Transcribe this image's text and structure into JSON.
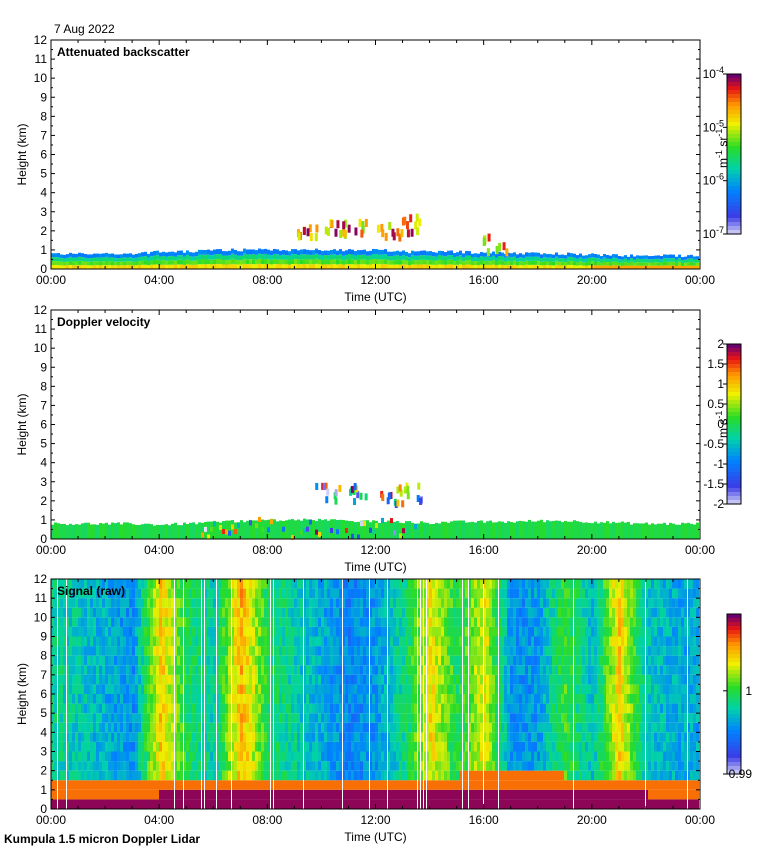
{
  "date": "7 Aug 2022",
  "instrument": "Kumpula 1.5 micron Doppler Lidar",
  "chart_data": [
    {
      "type": "heatmap",
      "title": "Attenuated backscatter",
      "xlabel": "Time (UTC)",
      "ylabel": "Height (km)",
      "xlim": [
        0,
        24
      ],
      "ylim": [
        0,
        12
      ],
      "x_tick_labels": [
        "00:00",
        "04:00",
        "08:00",
        "12:00",
        "16:00",
        "20:00",
        "00:00"
      ],
      "y_tick_labels": [
        "0",
        "1",
        "2",
        "3",
        "4",
        "5",
        "6",
        "7",
        "8",
        "9",
        "10",
        "11",
        "12"
      ],
      "colorbar": {
        "label_parts": [
          "m",
          "-1",
          " sr",
          "-1"
        ],
        "scale": "log",
        "tick_labels": [
          {
            "base": "10",
            "exp": "-7"
          },
          {
            "base": "10",
            "exp": "-6"
          },
          {
            "base": "10",
            "exp": "-5"
          },
          {
            "base": "10",
            "exp": "-4"
          }
        ]
      },
      "boundary_layer_top_km": [
        0.8,
        0.8,
        0.8,
        0.8,
        0.9,
        0.9,
        1.0,
        1.0,
        1.0,
        1.0,
        1.0,
        1.0,
        1.0,
        0.9,
        0.9,
        0.9,
        0.85,
        0.85,
        0.8,
        0.8,
        0.75,
        0.7,
        0.7,
        0.7,
        0.7
      ],
      "cloud_km": [
        [
          9.5,
          2.0
        ],
        [
          10.5,
          2.2
        ],
        [
          11.2,
          2.4
        ],
        [
          12.5,
          2.3
        ],
        [
          13.2,
          2.5
        ],
        [
          16.4,
          1.5
        ]
      ]
    },
    {
      "type": "heatmap",
      "title": "Doppler velocity",
      "xlabel": "Time (UTC)",
      "ylabel": "Height (km)",
      "xlim": [
        0,
        24
      ],
      "ylim": [
        0,
        12
      ],
      "x_tick_labels": [
        "00:00",
        "04:00",
        "08:00",
        "12:00",
        "16:00",
        "20:00",
        "00:00"
      ],
      "y_tick_labels": [
        "0",
        "1",
        "2",
        "3",
        "4",
        "5",
        "6",
        "7",
        "8",
        "9",
        "10",
        "11",
        "12"
      ],
      "colorbar": {
        "label_parts": [
          "m s",
          "-1"
        ],
        "scale": "linear",
        "range": [
          -2,
          2
        ],
        "tick_labels": [
          "2",
          "1.5",
          "1",
          "0.5",
          "0",
          "-0.5",
          "-1",
          "-1.5",
          "-2"
        ]
      },
      "boundary_layer_top_km": [
        0.8,
        0.8,
        0.8,
        0.8,
        0.75,
        0.8,
        0.9,
        0.95,
        1.0,
        1.0,
        1.0,
        0.95,
        0.9,
        0.9,
        0.85,
        0.9,
        0.9,
        0.9,
        0.95,
        0.95,
        0.9,
        0.85,
        0.8,
        0.8,
        0.8
      ],
      "cloud_km": [
        [
          10.2,
          2.6
        ],
        [
          11.4,
          2.5
        ],
        [
          12.6,
          2.4
        ],
        [
          13.2,
          2.6
        ]
      ]
    },
    {
      "type": "heatmap",
      "title": "Signal (raw)",
      "xlabel": "Time (UTC)",
      "ylabel": "Height (km)",
      "xlim": [
        0,
        24
      ],
      "ylim": [
        0,
        12
      ],
      "x_tick_labels": [
        "00:00",
        "04:00",
        "08:00",
        "12:00",
        "16:00",
        "20:00",
        "00:00"
      ],
      "y_tick_labels": [
        "0",
        "1",
        "2",
        "3",
        "4",
        "5",
        "6",
        "7",
        "8",
        "9",
        "10",
        "11",
        "12"
      ],
      "colorbar": {
        "scale": "linear",
        "range": [
          0.99,
          1.01
        ],
        "tick_labels": [
          "1",
          "0.99"
        ]
      },
      "background_level_by_hour": [
        0.45,
        0.4,
        0.35,
        0.3,
        0.75,
        0.5,
        0.42,
        0.78,
        0.5,
        0.42,
        0.35,
        0.28,
        0.32,
        0.45,
        0.72,
        0.5,
        0.7,
        0.3,
        0.32,
        0.55,
        0.38,
        0.75,
        0.4,
        0.35
      ],
      "surface_layer_top_km": [
        0.9,
        0.9,
        0.9,
        0.95,
        1.0,
        1.0,
        1.0,
        1.05,
        1.05,
        1.1,
        1.1,
        1.0,
        1.0,
        1.1,
        1.2,
        1.2,
        1.3,
        1.3,
        1.3,
        1.2,
        1.15,
        1.1,
        1.0,
        0.9,
        0.9
      ]
    }
  ]
}
